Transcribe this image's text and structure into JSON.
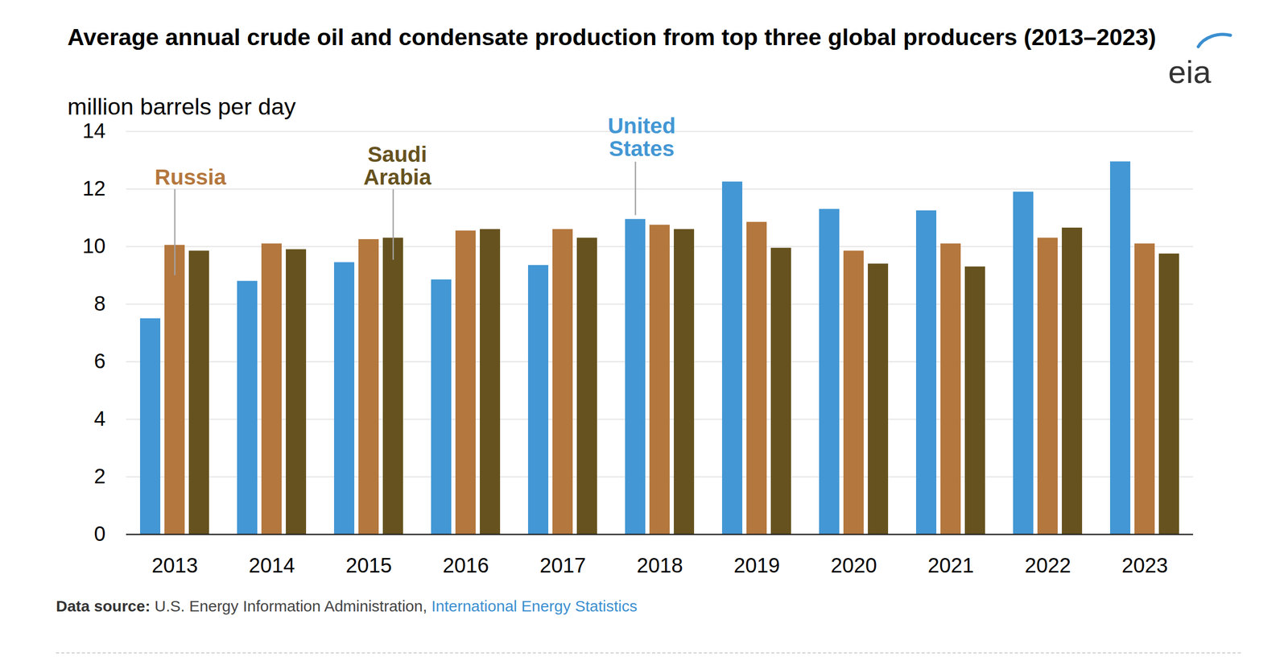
{
  "chart_data": {
    "type": "bar",
    "title": "Average annual crude oil and condensate production from top three global producers (2013–2023)",
    "subtitle": "million barrels per day",
    "logo": "eia",
    "source_label": "Data source:",
    "source_text": "U.S. Energy Information Administration,",
    "source_link": "International Energy Statistics",
    "categories": [
      "2013",
      "2014",
      "2015",
      "2016",
      "2017",
      "2018",
      "2019",
      "2020",
      "2021",
      "2022",
      "2023"
    ],
    "series": [
      {
        "name": "United States",
        "color": "#4397d4",
        "values": [
          7.5,
          8.8,
          9.45,
          8.85,
          9.35,
          10.95,
          12.25,
          11.3,
          11.25,
          11.9,
          12.95
        ]
      },
      {
        "name": "Russia",
        "color": "#b4773d",
        "values": [
          10.05,
          10.1,
          10.25,
          10.55,
          10.6,
          10.75,
          10.85,
          9.85,
          10.1,
          10.3,
          10.1
        ]
      },
      {
        "name": "Saudi Arabia",
        "color": "#66521e",
        "values": [
          9.85,
          9.9,
          10.3,
          10.6,
          10.3,
          10.6,
          9.95,
          9.4,
          9.3,
          10.65,
          9.75
        ]
      }
    ],
    "ylim": [
      0,
      14
    ],
    "yticks": [
      0,
      2,
      4,
      6,
      8,
      10,
      12,
      14
    ],
    "grid": true
  }
}
